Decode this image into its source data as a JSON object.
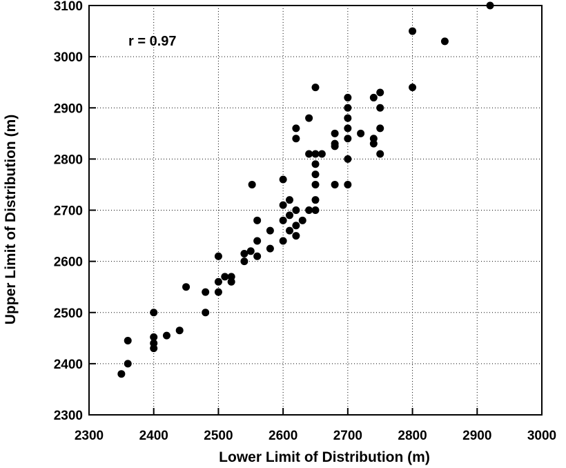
{
  "chart_data": {
    "type": "scatter",
    "xlabel": "Lower Limit of Distribution  (m)",
    "ylabel": "Upper Limit of Distribution  (m)",
    "xlim": [
      2300,
      3000
    ],
    "ylim": [
      2300,
      3100
    ],
    "xticks": [
      "2300",
      "2400",
      "2500",
      "2600",
      "2700",
      "2800",
      "2900",
      "3000"
    ],
    "yticks": [
      "2300",
      "2400",
      "2500",
      "2600",
      "2700",
      "2800",
      "2900",
      "3000",
      "3100"
    ],
    "grid": true,
    "annotation": "r = 0.97",
    "points": [
      [
        2350,
        2380
      ],
      [
        2360,
        2400
      ],
      [
        2360,
        2445
      ],
      [
        2400,
        2430
      ],
      [
        2400,
        2440
      ],
      [
        2400,
        2452
      ],
      [
        2400,
        2500
      ],
      [
        2420,
        2455
      ],
      [
        2440,
        2465
      ],
      [
        2450,
        2550
      ],
      [
        2480,
        2500
      ],
      [
        2480,
        2540
      ],
      [
        2500,
        2540
      ],
      [
        2500,
        2560
      ],
      [
        2500,
        2610
      ],
      [
        2510,
        2570
      ],
      [
        2520,
        2560
      ],
      [
        2520,
        2570
      ],
      [
        2540,
        2600
      ],
      [
        2540,
        2615
      ],
      [
        2550,
        2620
      ],
      [
        2552,
        2750
      ],
      [
        2560,
        2610
      ],
      [
        2560,
        2640
      ],
      [
        2560,
        2680
      ],
      [
        2580,
        2625
      ],
      [
        2580,
        2660
      ],
      [
        2600,
        2640
      ],
      [
        2600,
        2680
      ],
      [
        2600,
        2710
      ],
      [
        2600,
        2760
      ],
      [
        2610,
        2660
      ],
      [
        2610,
        2690
      ],
      [
        2610,
        2720
      ],
      [
        2620,
        2650
      ],
      [
        2620,
        2670
      ],
      [
        2620,
        2700
      ],
      [
        2620,
        2840
      ],
      [
        2620,
        2860
      ],
      [
        2630,
        2680
      ],
      [
        2640,
        2700
      ],
      [
        2640,
        2810
      ],
      [
        2640,
        2880
      ],
      [
        2650,
        2700
      ],
      [
        2650,
        2720
      ],
      [
        2650,
        2750
      ],
      [
        2650,
        2770
      ],
      [
        2650,
        2790
      ],
      [
        2650,
        2810
      ],
      [
        2650,
        2940
      ],
      [
        2660,
        2810
      ],
      [
        2680,
        2750
      ],
      [
        2680,
        2825
      ],
      [
        2680,
        2830
      ],
      [
        2680,
        2850
      ],
      [
        2700,
        2750
      ],
      [
        2700,
        2800
      ],
      [
        2700,
        2840
      ],
      [
        2700,
        2860
      ],
      [
        2700,
        2880
      ],
      [
        2700,
        2900
      ],
      [
        2700,
        2920
      ],
      [
        2720,
        2850
      ],
      [
        2740,
        2830
      ],
      [
        2740,
        2840
      ],
      [
        2740,
        2920
      ],
      [
        2750,
        2810
      ],
      [
        2750,
        2860
      ],
      [
        2750,
        2900
      ],
      [
        2750,
        2930
      ],
      [
        2800,
        2940
      ],
      [
        2800,
        3050
      ],
      [
        2850,
        3030
      ],
      [
        2920,
        3100
      ]
    ]
  }
}
